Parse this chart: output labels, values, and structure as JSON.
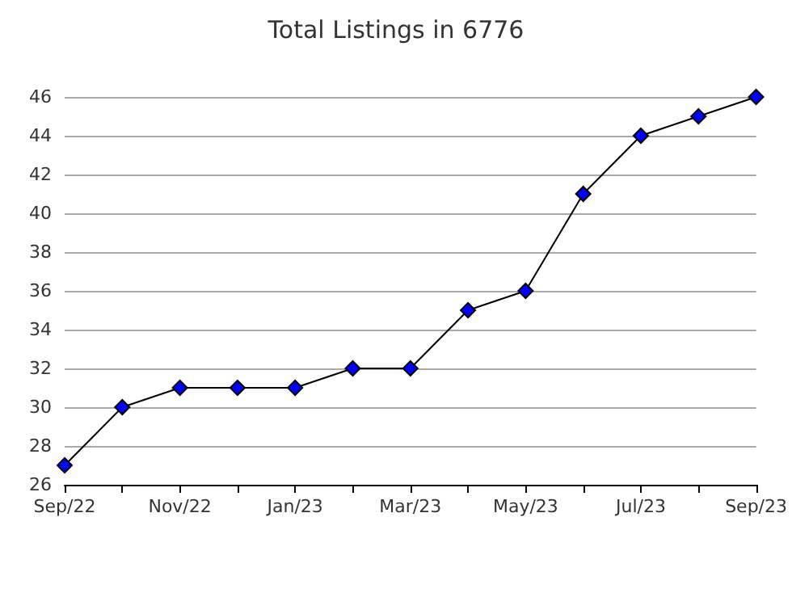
{
  "chart_data": {
    "type": "line",
    "title": "Total Listings in 6776",
    "categories": [
      "Sep/22",
      null,
      "Nov/22",
      null,
      "Jan/23",
      null,
      "Mar/23",
      null,
      "May/23",
      null,
      "Jul/23",
      null,
      "Sep/23"
    ],
    "series": [
      {
        "color": "#0000ff",
        "values": [
          27,
          30,
          31,
          31,
          31,
          32,
          32,
          35,
          36,
          41,
          44,
          45,
          46
        ]
      }
    ],
    "ylim": [
      26,
      46
    ],
    "yticks": [
      26,
      28,
      30,
      32,
      34,
      36,
      38,
      40,
      42,
      44,
      46
    ],
    "grid": "y",
    "marker": "diamond",
    "line_style": "solid"
  }
}
